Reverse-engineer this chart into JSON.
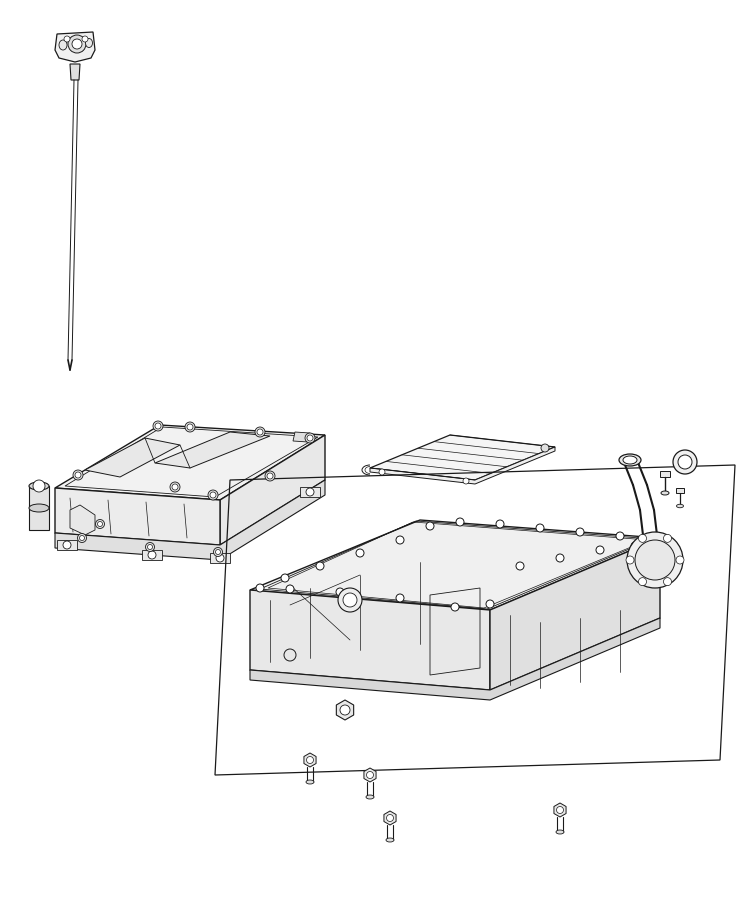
{
  "bg_color": "#ffffff",
  "line_color": "#1a1a1a",
  "fig_width": 7.41,
  "fig_height": 9.0,
  "dpi": 100
}
